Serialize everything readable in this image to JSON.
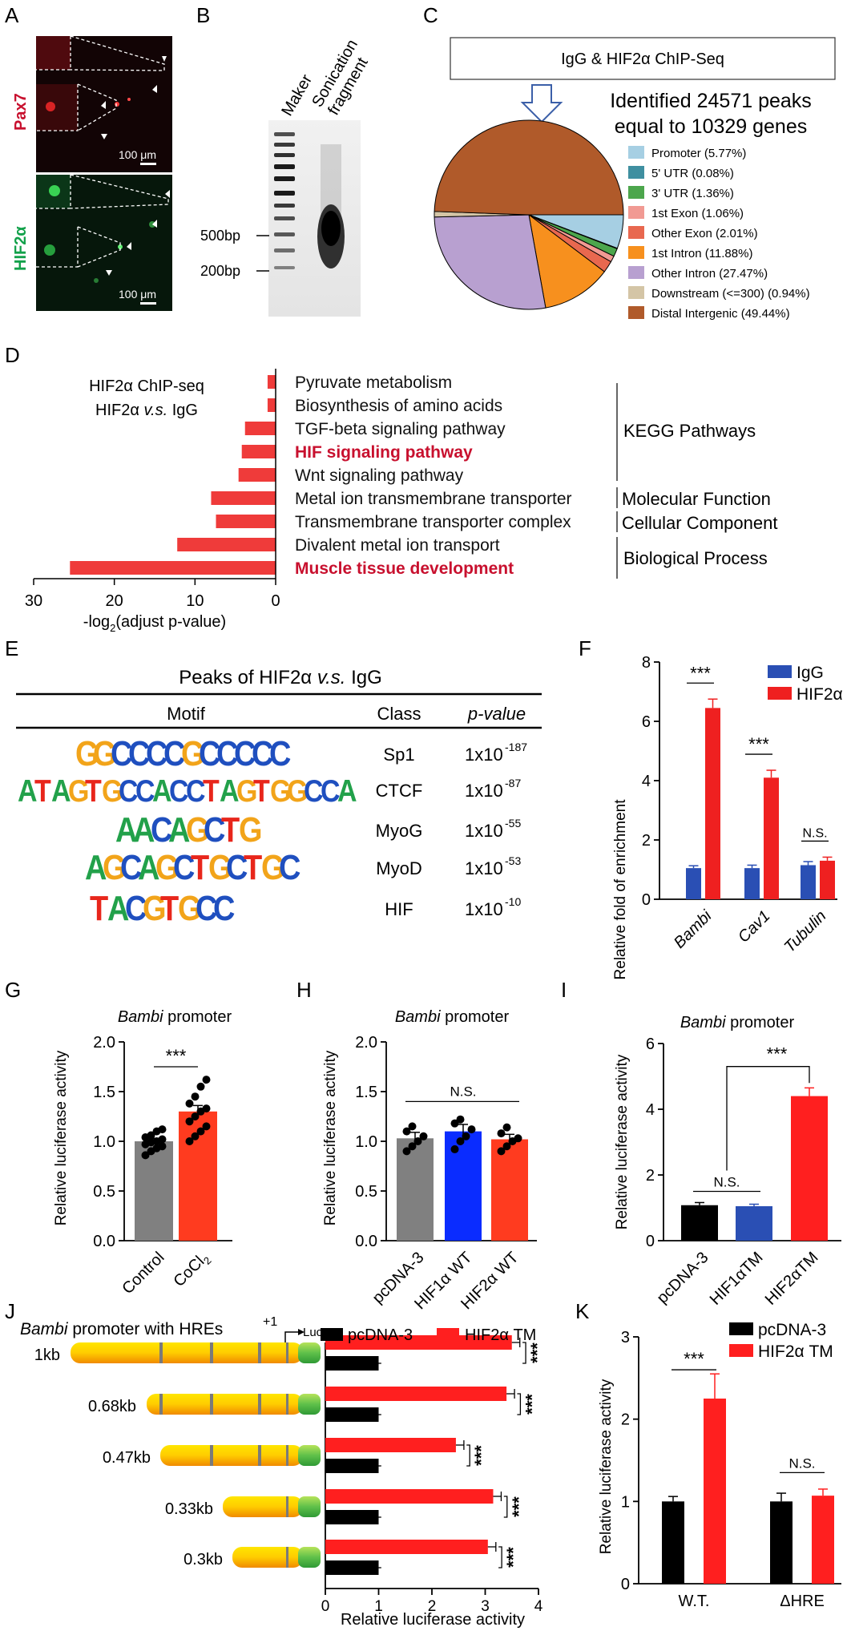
{
  "panel_letters": {
    "A": "A",
    "B": "B",
    "C": "C",
    "D": "D",
    "E": "E",
    "F": "F",
    "G": "G",
    "H": "H",
    "I": "I",
    "J": "J",
    "K": "K"
  },
  "panelA": {
    "label_top": "Pax7",
    "label_bottom": "HIF2α",
    "scale": "100 μm",
    "color_top": "#c8102e",
    "color_bottom": "#12a14a"
  },
  "panelB": {
    "col1": "Maker",
    "col2a": "Sonication",
    "col2b": "fragment",
    "marker1": "500bp",
    "marker2": "200bp"
  },
  "panelC": {
    "box_title": "IgG & HIF2α ChIP-Seq",
    "peaks_line1": "Identified 24571 peaks",
    "peaks_line2": "equal to 10329 genes",
    "chart_data": {
      "type": "pie",
      "title": "IgG & HIF2α ChIP-Seq",
      "labels": [
        "Promoter (5.77%)",
        "5' UTR (0.08%)",
        "3' UTR (1.36%)",
        "1st Exon (1.06%)",
        "Other Exon (2.01%)",
        "1st Intron (11.88%)",
        "Other Intron (27.47%)",
        "Downstream (<=300) (0.94%)",
        "Distal Intergenic (49.44%)"
      ],
      "values": [
        5.77,
        0.08,
        1.36,
        1.06,
        2.01,
        11.88,
        27.47,
        0.94,
        49.44
      ],
      "colors": [
        "#a6cfe3",
        "#3f8fa0",
        "#4ca64c",
        "#f19a93",
        "#e8684f",
        "#f7901e",
        "#b8a0d0",
        "#d4c5a6",
        "#b05a2a"
      ]
    }
  },
  "panelD": {
    "side1": "HIF2α ChIP-seq",
    "side2": "HIF2α v.s. IgG",
    "groups": [
      "KEGG Pathways",
      "Molecular Function",
      "Cellular Component",
      "Biological Process"
    ],
    "chart_data": {
      "type": "bar",
      "orientation": "horizontal",
      "categories": [
        "Pyruvate metabolism",
        "Biosynthesis of amino acids",
        "TGF-beta signaling pathway",
        "HIF signaling pathway",
        "Wnt signaling pathway",
        "Metal ion transmembrane transporter",
        "Transmembrane transporter complex",
        "Divalent metal ion transport",
        "Muscle tissue development"
      ],
      "values": [
        1,
        1,
        3.8,
        4.2,
        4.6,
        8,
        7.4,
        12.2,
        25.5
      ],
      "highlight": [
        false,
        false,
        false,
        true,
        false,
        false,
        false,
        false,
        true
      ],
      "xlabel": "-log2(adjust p-value)",
      "xlim": [
        0,
        30
      ],
      "xticks": [
        "30",
        "20",
        "10",
        "0"
      ],
      "color": "#ef3b3a",
      "highlight_color": "#c8102e"
    }
  },
  "panelE": {
    "title": "Peaks of HIF2α v.s. IgG",
    "col_motif": "Motif",
    "col_class": "Class",
    "col_p": "p-value",
    "rows": [
      {
        "motif": "GGCCCCGCCCCC",
        "cls": "Sp1",
        "p": "1x10",
        "exp": "-187"
      },
      {
        "motif": "ATAGTGCCACCTAGTGGCCA",
        "cls": "CTCF",
        "p": "1x10",
        "exp": "-87"
      },
      {
        "motif": "AACAGCTG",
        "cls": "MyoG",
        "p": "1x10",
        "exp": "-55"
      },
      {
        "motif": "AGCAGCTGCTGC",
        "cls": "MyoD",
        "p": "1x10",
        "exp": "-53"
      },
      {
        "motif": "TACGTGCC",
        "cls": "HIF",
        "p": "1x10",
        "exp": "-10"
      }
    ]
  },
  "panelF": {
    "chart_data": {
      "type": "bar",
      "categories": [
        "Bambi",
        "Cav1",
        "Tubulin"
      ],
      "series": [
        {
          "name": "IgG",
          "values": [
            1.05,
            1.05,
            1.15
          ],
          "color": "#2a4fb4"
        },
        {
          "name": "HIF2α",
          "values": [
            6.45,
            4.1,
            1.3
          ],
          "color": "#ef2020"
        }
      ],
      "errors": [
        [
          0.08,
          0.1,
          0.12
        ],
        [
          0.3,
          0.25,
          0.12
        ]
      ],
      "sig": [
        "***",
        "***",
        "N.S."
      ],
      "ylabel": "Relative fold of enrichment",
      "ylim": [
        0,
        8
      ],
      "yticks": [
        "0",
        "2",
        "4",
        "6",
        "8"
      ]
    }
  },
  "panelG": {
    "title": "promoter",
    "gene": "Bambi",
    "chart_data": {
      "type": "bar",
      "categories": [
        "Control",
        "CoCl2"
      ],
      "values": [
        1.0,
        1.3
      ],
      "colors": [
        "#808080",
        "#ff3b1f"
      ],
      "errors": [
        0.03,
        0.06
      ],
      "points": [
        [
          0.86,
          0.9,
          0.93,
          0.95,
          0.97,
          0.99,
          1.0,
          1.02,
          1.04,
          1.06,
          1.1,
          1.12
        ],
        [
          1.0,
          1.05,
          1.1,
          1.15,
          1.2,
          1.25,
          1.3,
          1.33,
          1.38,
          1.45,
          1.55,
          1.62
        ]
      ],
      "sig": "***",
      "ylabel": "Relative luciferase activity",
      "ylim": [
        0,
        2.0
      ],
      "yticks": [
        "0.0",
        "0.5",
        "1.0",
        "1.5",
        "2.0"
      ]
    }
  },
  "panelH": {
    "title": "promoter",
    "gene": "Bambi",
    "chart_data": {
      "type": "bar",
      "categories": [
        "pcDNA-3",
        "HIF1α WT",
        "HIF2α WT"
      ],
      "values": [
        1.03,
        1.1,
        1.02
      ],
      "colors": [
        "#808080",
        "#0a2cff",
        "#ff3b1f"
      ],
      "errors": [
        0.06,
        0.07,
        0.05
      ],
      "points": [
        [
          0.9,
          0.95,
          1.0,
          1.05,
          1.1,
          1.15
        ],
        [
          0.92,
          1.0,
          1.05,
          1.12,
          1.18,
          1.22
        ],
        [
          0.9,
          0.95,
          1.0,
          1.03,
          1.08,
          1.14
        ]
      ],
      "sig": "N.S.",
      "ylabel": "Relative luciferase activity",
      "ylim": [
        0,
        2.0
      ],
      "yticks": [
        "0.0",
        "0.5",
        "1.0",
        "1.5",
        "2.0"
      ]
    }
  },
  "panelI": {
    "title": "promoter",
    "gene": "Bambi",
    "chart_data": {
      "type": "bar",
      "categories": [
        "pcDNA-3",
        "HIF1αTM",
        "HIF2αTM"
      ],
      "values": [
        1.08,
        1.05,
        4.4
      ],
      "colors": [
        "#000000",
        "#2a4fb4",
        "#ff1f1f"
      ],
      "errors": [
        0.08,
        0.06,
        0.25
      ],
      "sig": [
        "N.S.",
        "***"
      ],
      "ylabel": "Relative luciferase activity",
      "ylim": [
        0,
        6
      ],
      "yticks": [
        "0",
        "2",
        "4",
        "6"
      ]
    }
  },
  "panelJ": {
    "title_gene": "Bambi",
    "title_rest": "promoter with HREs",
    "plus1": "+1",
    "luc": "Luc",
    "chart_data": {
      "type": "bar",
      "orientation": "horizontal",
      "categories": [
        "1kb",
        "0.68kb",
        "0.47kb",
        "0.33kb",
        "0.3kb"
      ],
      "series": [
        {
          "name": "pcDNA-3",
          "values": [
            1,
            1,
            1,
            1,
            1
          ],
          "color": "#000000"
        },
        {
          "name": "HIF2α TM",
          "values": [
            3.5,
            3.4,
            2.45,
            3.15,
            3.05
          ],
          "color": "#ff1f1f"
        }
      ],
      "sig": [
        "***",
        "***",
        "***",
        "***",
        "***"
      ],
      "xlabel": "Relative luciferase activity",
      "xlim": [
        0,
        4
      ],
      "xticks": [
        "0",
        "1",
        "2",
        "3",
        "4"
      ]
    }
  },
  "panelK": {
    "chart_data": {
      "type": "bar",
      "categories": [
        "W.T.",
        "ΔHRE"
      ],
      "series": [
        {
          "name": "pcDNA-3",
          "values": [
            1.0,
            1.0
          ],
          "color": "#000000"
        },
        {
          "name": "HIF2α TM",
          "values": [
            2.25,
            1.07
          ],
          "color": "#ff1f1f"
        }
      ],
      "errors": [
        [
          0.06,
          0.1
        ],
        [
          0.3,
          0.08
        ]
      ],
      "sig": [
        "***",
        "N.S."
      ],
      "ylabel": "Relative luciferase activity",
      "ylim": [
        0,
        3
      ],
      "yticks": [
        "0",
        "1",
        "2",
        "3"
      ]
    }
  }
}
